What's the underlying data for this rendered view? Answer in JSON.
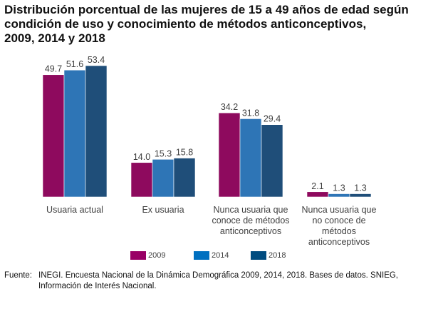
{
  "chart_data": {
    "type": "bar",
    "title": "Distribución porcentual de las mujeres de 15 a 49 años de edad según condición de uso y conocimiento de métodos anticonceptivos, 2009, 2014 y 2018",
    "title_lines": [
      "Distribución porcentual de las mujeres de 15 a 49 años de edad según",
      "condición de uso y conocimiento de métodos anticonceptivos,",
      "2009, 2014 y 2018"
    ],
    "categories": [
      [
        "Usuaria actual"
      ],
      [
        "Ex usuaria"
      ],
      [
        "Nunca usuaria que",
        "conoce de métodos",
        "anticonceptivos"
      ],
      [
        "Nunca usuaria que",
        "no conoce de",
        "métodos",
        "anticonceptivos"
      ]
    ],
    "series": [
      {
        "name": "2009",
        "color": "#8E0A5E",
        "values": [
          49.7,
          14.0,
          34.2,
          2.1
        ],
        "labels": [
          "49.7",
          "14.0",
          "34.2",
          "2.1"
        ]
      },
      {
        "name": "2014",
        "color": "#2E75B6",
        "values": [
          51.6,
          15.3,
          31.8,
          1.3
        ],
        "labels": [
          "51.6",
          "15.3",
          "31.8",
          "1.3"
        ]
      },
      {
        "name": "2018",
        "color": "#1F4E79",
        "values": [
          53.4,
          15.8,
          29.4,
          1.3
        ],
        "labels": [
          "53.4",
          "15.8",
          "29.4",
          "1.3"
        ]
      }
    ],
    "legend_colors": [
      "#990066",
      "#0070C0",
      "#004C80"
    ],
    "xlabel": "",
    "ylabel": "",
    "ylim": [
      0,
      55
    ],
    "grid": false,
    "legend_position": "bottom"
  },
  "source": {
    "label": "Fuente:",
    "lines": [
      "INEGI. Encuesta Nacional de la Dinámica Demográfica 2009, 2014, 2018. Bases de datos. SNIEG,",
      "Información de Interés Nacional."
    ]
  }
}
